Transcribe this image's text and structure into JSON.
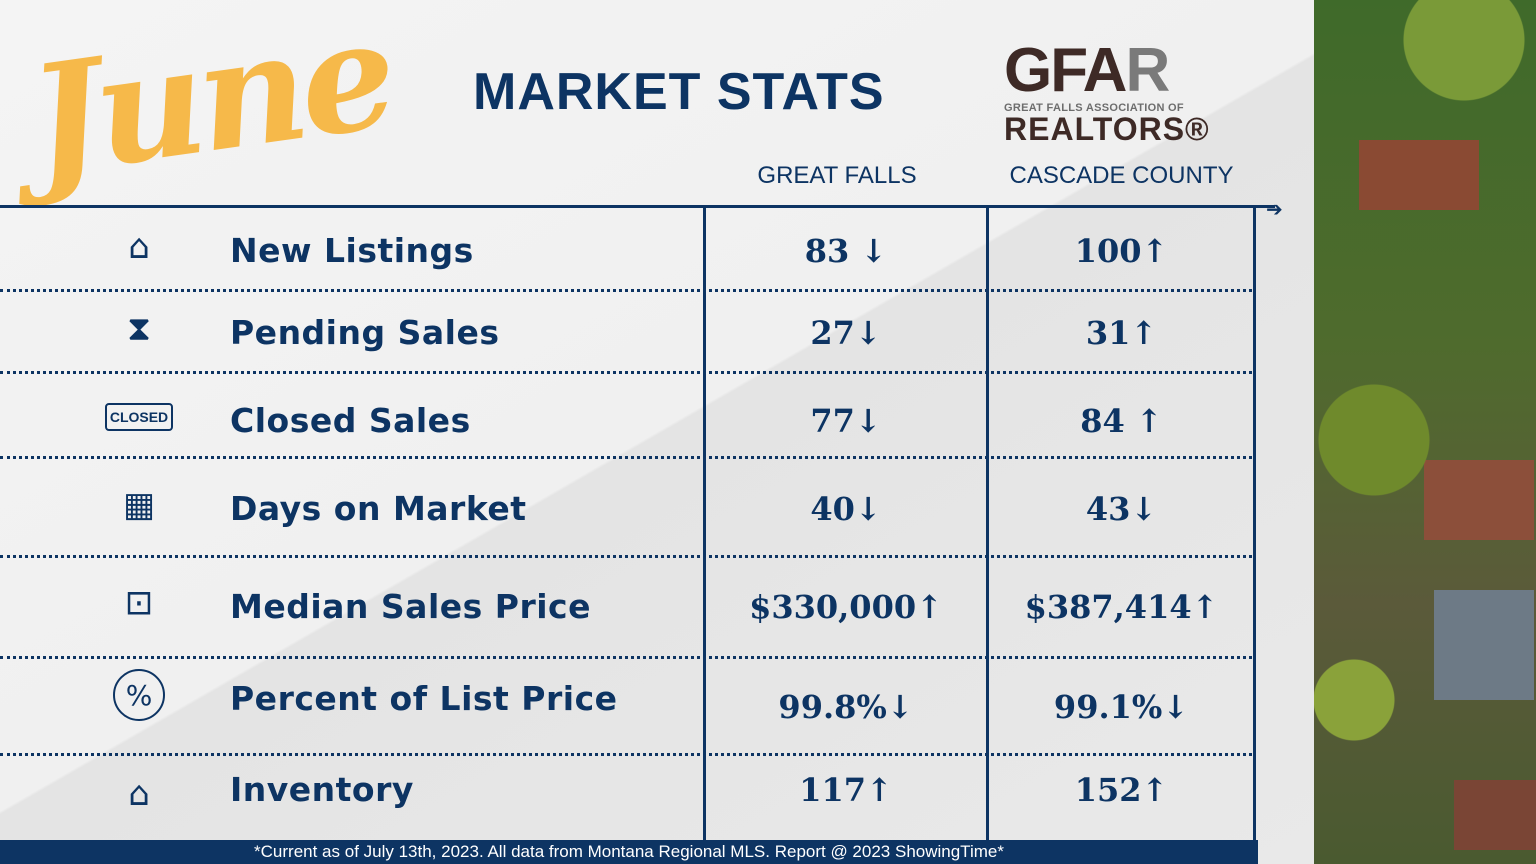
{
  "header": {
    "month": "June",
    "title": "MARKET STATS"
  },
  "logo": {
    "mark_a": "GFA",
    "mark_b": "R",
    "subtitle": "GREAT FALLS ASSOCIATION OF",
    "name": "REALTORS®"
  },
  "columns": [
    "GREAT FALLS",
    "CASCADE COUNTY"
  ],
  "rows": [
    {
      "icon": "home-pin-icon",
      "label": "New Listings",
      "great_falls": "83 ↓",
      "cascade_county": "100↑"
    },
    {
      "icon": "hourglass-icon",
      "label": "Pending Sales",
      "great_falls": "27↓",
      "cascade_county": "31↑"
    },
    {
      "icon": "closed-sign-icon",
      "icon_text": "CLOSED",
      "label": "Closed Sales",
      "great_falls": "77↓",
      "cascade_county": "84 ↑"
    },
    {
      "icon": "calendar-icon",
      "label": "Days on Market",
      "great_falls": "40↓",
      "cascade_county": "43↓"
    },
    {
      "icon": "for-sale-sign-icon",
      "label": "Median Sales Price",
      "great_falls": "$330,000↑",
      "cascade_county": "$387,414↑"
    },
    {
      "icon": "percent-icon",
      "label": "Percent of List Price",
      "great_falls": "99.8%↓",
      "cascade_county": "99.1%↓"
    },
    {
      "icon": "house-outline-icon",
      "label": "Inventory",
      "great_falls": "117↑",
      "cascade_county": "152↑"
    }
  ],
  "footer": "*Current as of July 13th, 2023. All data from Montana Regional MLS. Report @ 2023 ShowingTime*",
  "colors": {
    "navy": "#0d3463",
    "accent": "#f6b94a",
    "logo_brown": "#3e2a26"
  }
}
